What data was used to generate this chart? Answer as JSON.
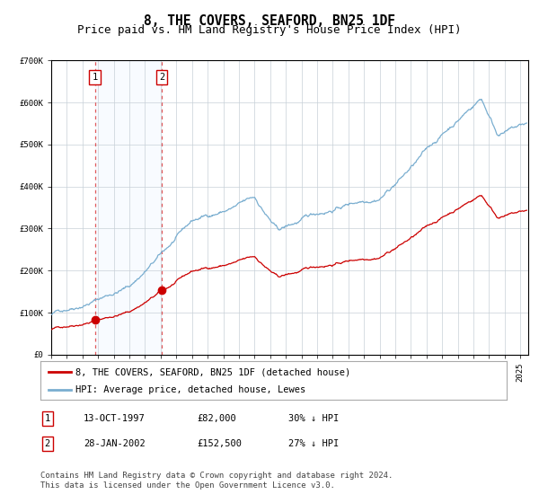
{
  "title": "8, THE COVERS, SEAFORD, BN25 1DF",
  "subtitle": "Price paid vs. HM Land Registry's House Price Index (HPI)",
  "ylim": [
    0,
    700000
  ],
  "xlim_start": 1995.0,
  "xlim_end": 2025.5,
  "background_color": "#ffffff",
  "plot_bg_color": "#ffffff",
  "grid_color": "#c8d0d8",
  "hpi_color": "#7aaed0",
  "price_color": "#cc0000",
  "shading_color": "#ddeeff",
  "sale1_date": 1997.79,
  "sale1_price": 82000,
  "sale2_date": 2002.07,
  "sale2_price": 152500,
  "legend_entries": [
    "8, THE COVERS, SEAFORD, BN25 1DF (detached house)",
    "HPI: Average price, detached house, Lewes"
  ],
  "table_row1": [
    "1",
    "13-OCT-1997",
    "£82,000",
    "30% ↓ HPI"
  ],
  "table_row2": [
    "2",
    "28-JAN-2002",
    "£152,500",
    "27% ↓ HPI"
  ],
  "footnote": "Contains HM Land Registry data © Crown copyright and database right 2024.\nThis data is licensed under the Open Government Licence v3.0.",
  "title_fontsize": 10.5,
  "subtitle_fontsize": 9,
  "tick_fontsize": 6.5,
  "legend_fontsize": 7.5,
  "table_fontsize": 7.5,
  "footnote_fontsize": 6.5
}
